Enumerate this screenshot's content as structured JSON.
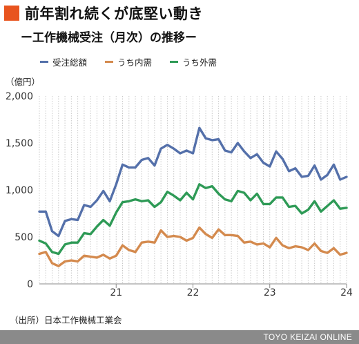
{
  "header": {
    "title": "前年割れ続くが底堅い動き",
    "subtitle": "ー工作機械受注（月次）の推移ー"
  },
  "unit_label": "（億円）",
  "source": "（出所）日本工作機械工業会",
  "footer": "TOYO KEIZAI ONLINE",
  "colors": {
    "total": "#5470aa",
    "domestic": "#d48a4e",
    "foreign": "#2e9a56",
    "accent": "#e8541e"
  },
  "chart_data": {
    "type": "line",
    "x_tick_labels": [
      "21",
      "22",
      "23",
      "24"
    ],
    "y_ticks": [
      "0",
      "500",
      "1,000",
      "1,500",
      "2,000"
    ],
    "ylim": [
      0,
      2000
    ],
    "grid": "vertical dotted lines",
    "legend_position": "top",
    "months_from_2020_01": [
      0,
      48
    ],
    "series": [
      {
        "name": "受注総額",
        "key": "total",
        "values": [
          770,
          770,
          560,
          510,
          670,
          690,
          680,
          840,
          820,
          890,
          990,
          880,
          1060,
          1270,
          1240,
          1240,
          1320,
          1340,
          1260,
          1440,
          1480,
          1440,
          1390,
          1420,
          1390,
          1660,
          1550,
          1530,
          1540,
          1420,
          1400,
          1500,
          1410,
          1340,
          1380,
          1290,
          1250,
          1410,
          1330,
          1200,
          1230,
          1140,
          1150,
          1260,
          1110,
          1160,
          1270,
          1110,
          1140
        ]
      },
      {
        "name": "うち内需",
        "key": "domestic",
        "values": [
          320,
          340,
          220,
          190,
          240,
          250,
          240,
          300,
          290,
          280,
          310,
          270,
          300,
          410,
          360,
          340,
          440,
          450,
          440,
          570,
          500,
          510,
          500,
          460,
          490,
          600,
          530,
          490,
          580,
          520,
          520,
          510,
          440,
          450,
          420,
          430,
          390,
          490,
          410,
          380,
          400,
          390,
          360,
          430,
          350,
          330,
          380,
          310,
          330
        ]
      },
      {
        "name": "うち外需",
        "key": "foreign",
        "values": [
          460,
          430,
          340,
          320,
          420,
          440,
          440,
          540,
          530,
          610,
          680,
          620,
          760,
          870,
          880,
          900,
          880,
          890,
          820,
          870,
          980,
          940,
          890,
          970,
          900,
          1060,
          1020,
          1040,
          960,
          900,
          880,
          990,
          970,
          890,
          960,
          850,
          850,
          920,
          920,
          820,
          830,
          750,
          790,
          880,
          770,
          830,
          890,
          800,
          810
        ]
      }
    ]
  }
}
